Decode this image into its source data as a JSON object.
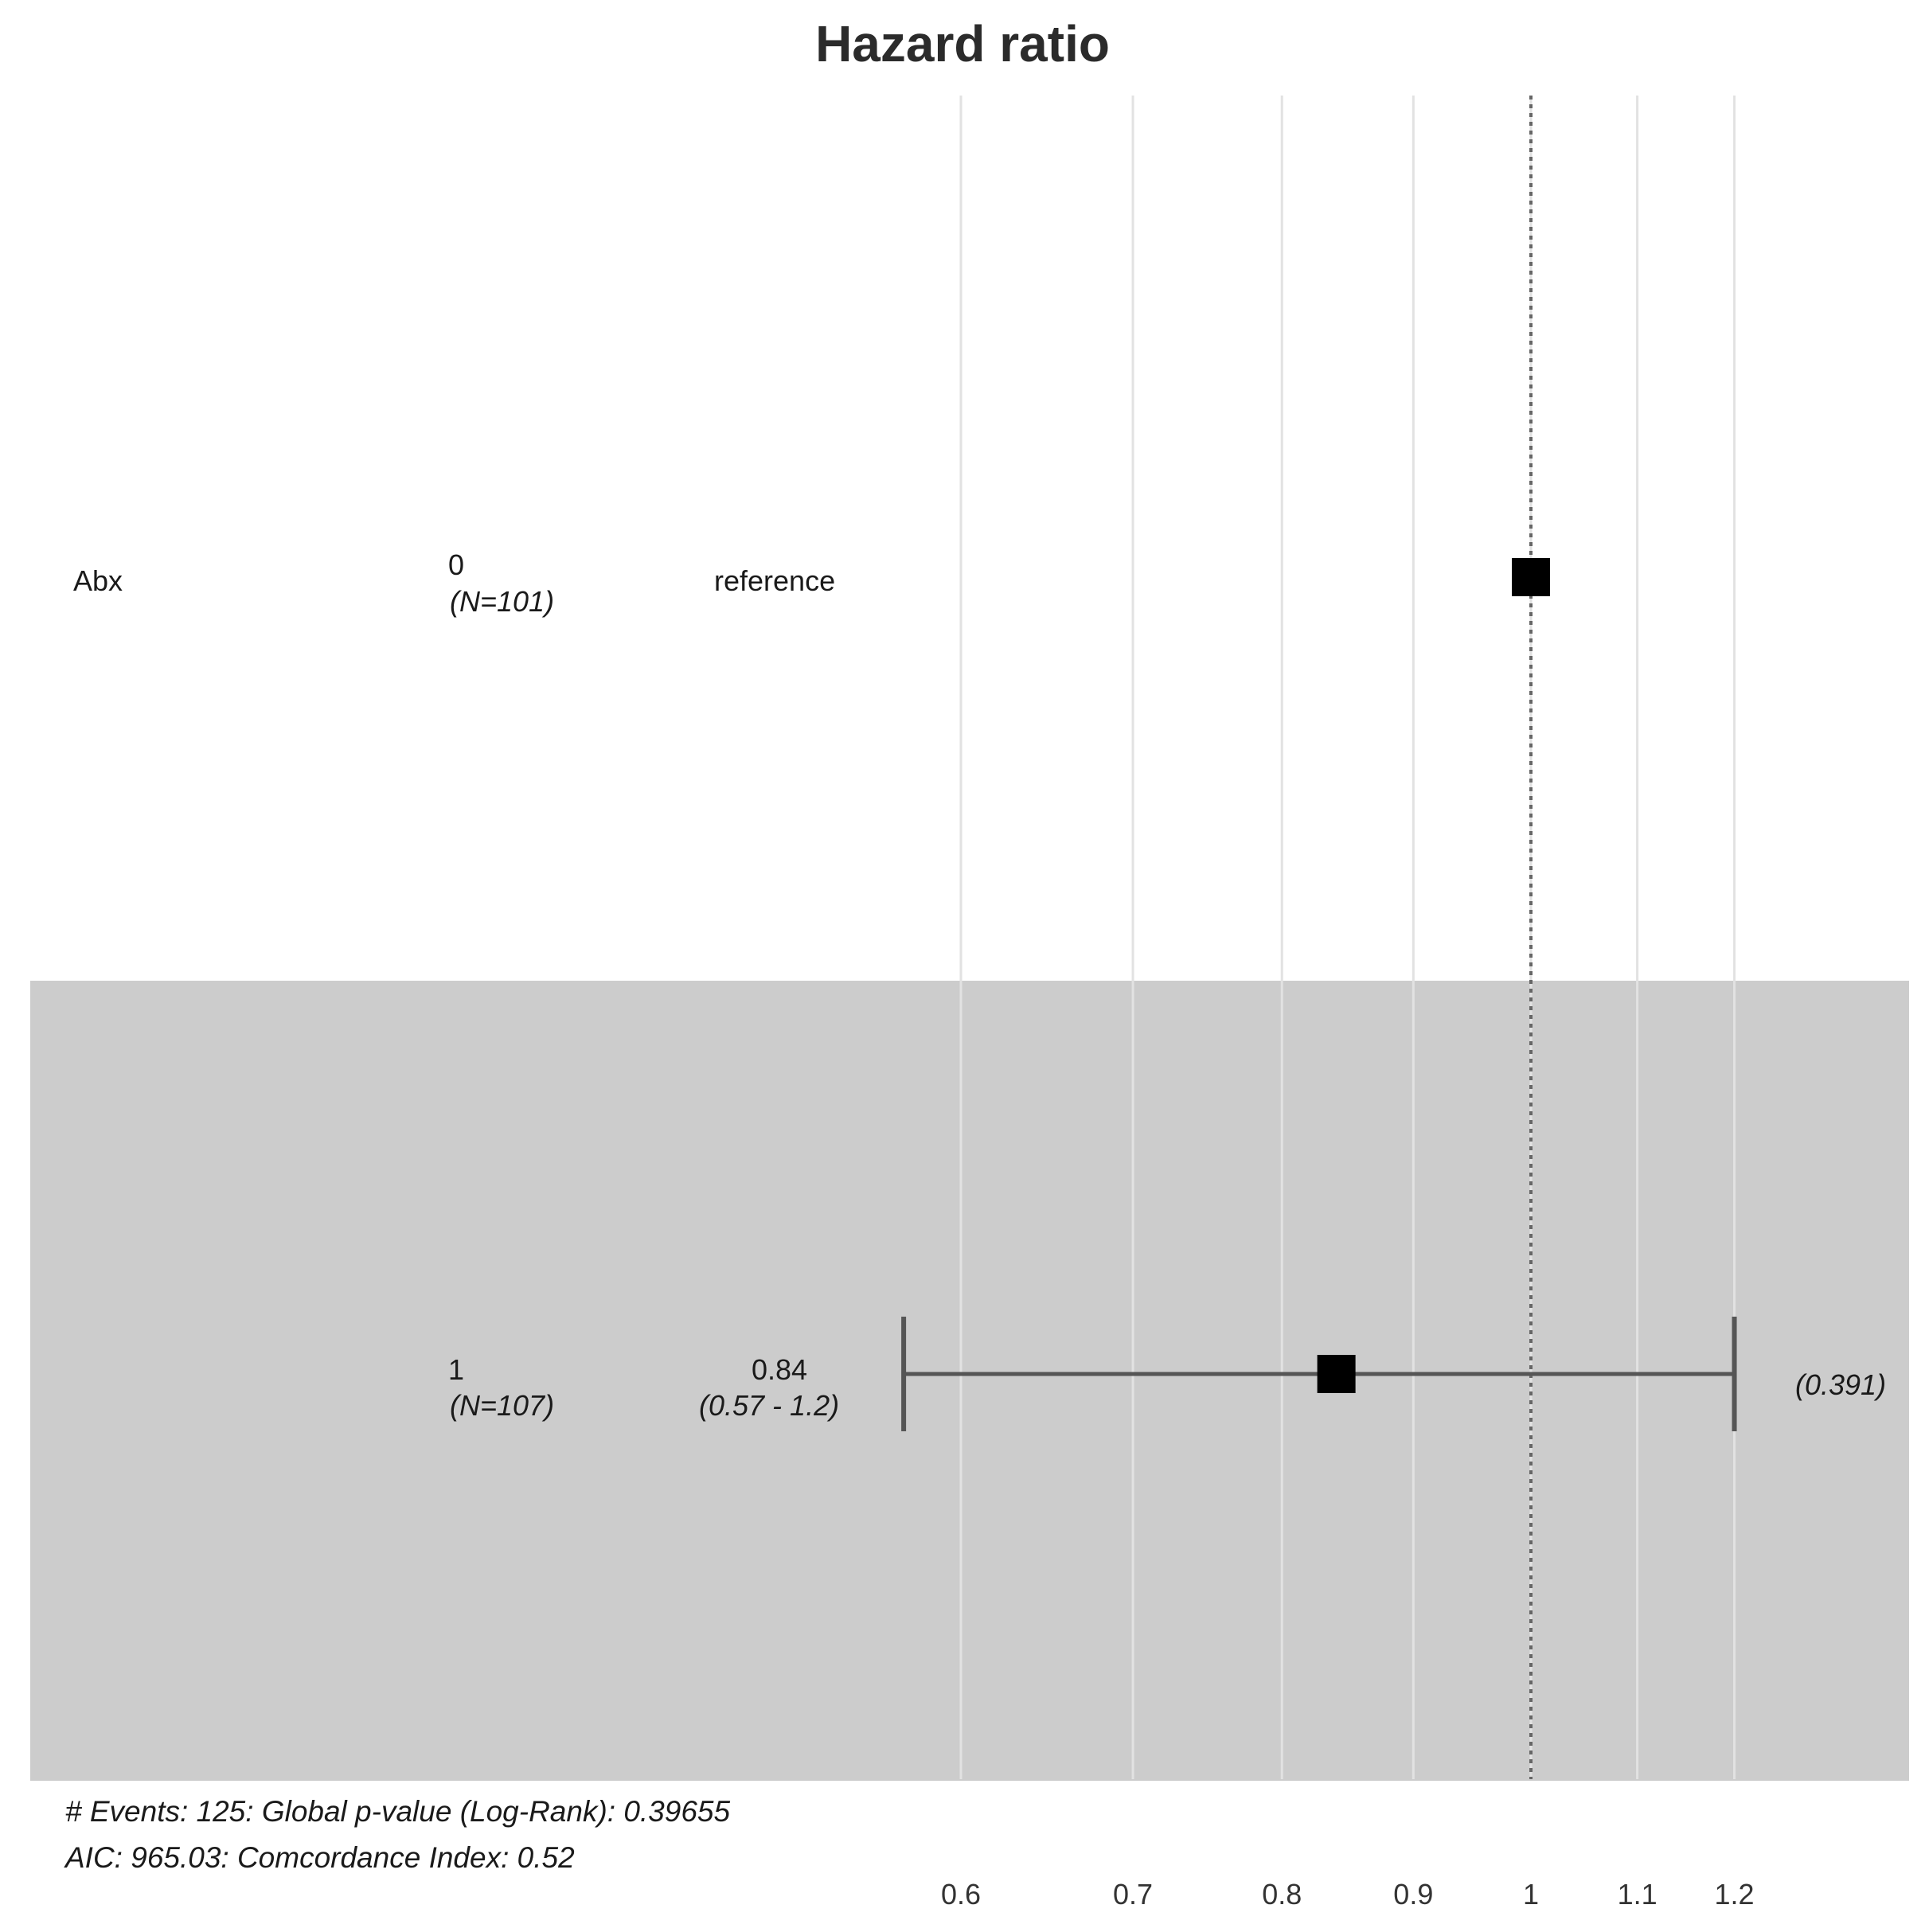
{
  "chart_data": {
    "type": "forest",
    "title": "Hazard ratio",
    "xscale": "log",
    "xlim": [
      0.53,
      1.29
    ],
    "xticks": [
      0.6,
      0.7,
      0.8,
      0.9,
      1,
      1.1,
      1.2
    ],
    "xtick_labels": [
      "0.6",
      "0.7",
      "0.8",
      "0.9",
      "1",
      "1.1",
      "1.2"
    ],
    "reference_line": 1,
    "grid": true,
    "variable": "Abx",
    "rows": [
      {
        "level": "0",
        "n_label": "(N=101)",
        "estimate_label": "reference",
        "ci_label": "",
        "p_label": "",
        "hr": 1,
        "lower": null,
        "upper": null,
        "shaded": false
      },
      {
        "level": "1",
        "n_label": "(N=107)",
        "estimate_label": "0.84",
        "ci_label": "(0.57 - 1.2)",
        "p_label": "(0.391)",
        "hr": 0.84,
        "lower": 0.57,
        "upper": 1.2,
        "shaded": true
      }
    ],
    "footer": [
      "# Events:  125: Global p-value (Log-Rank): 0.39655",
      "AIC: 965.03: Comcordance Index: 0.52"
    ]
  }
}
